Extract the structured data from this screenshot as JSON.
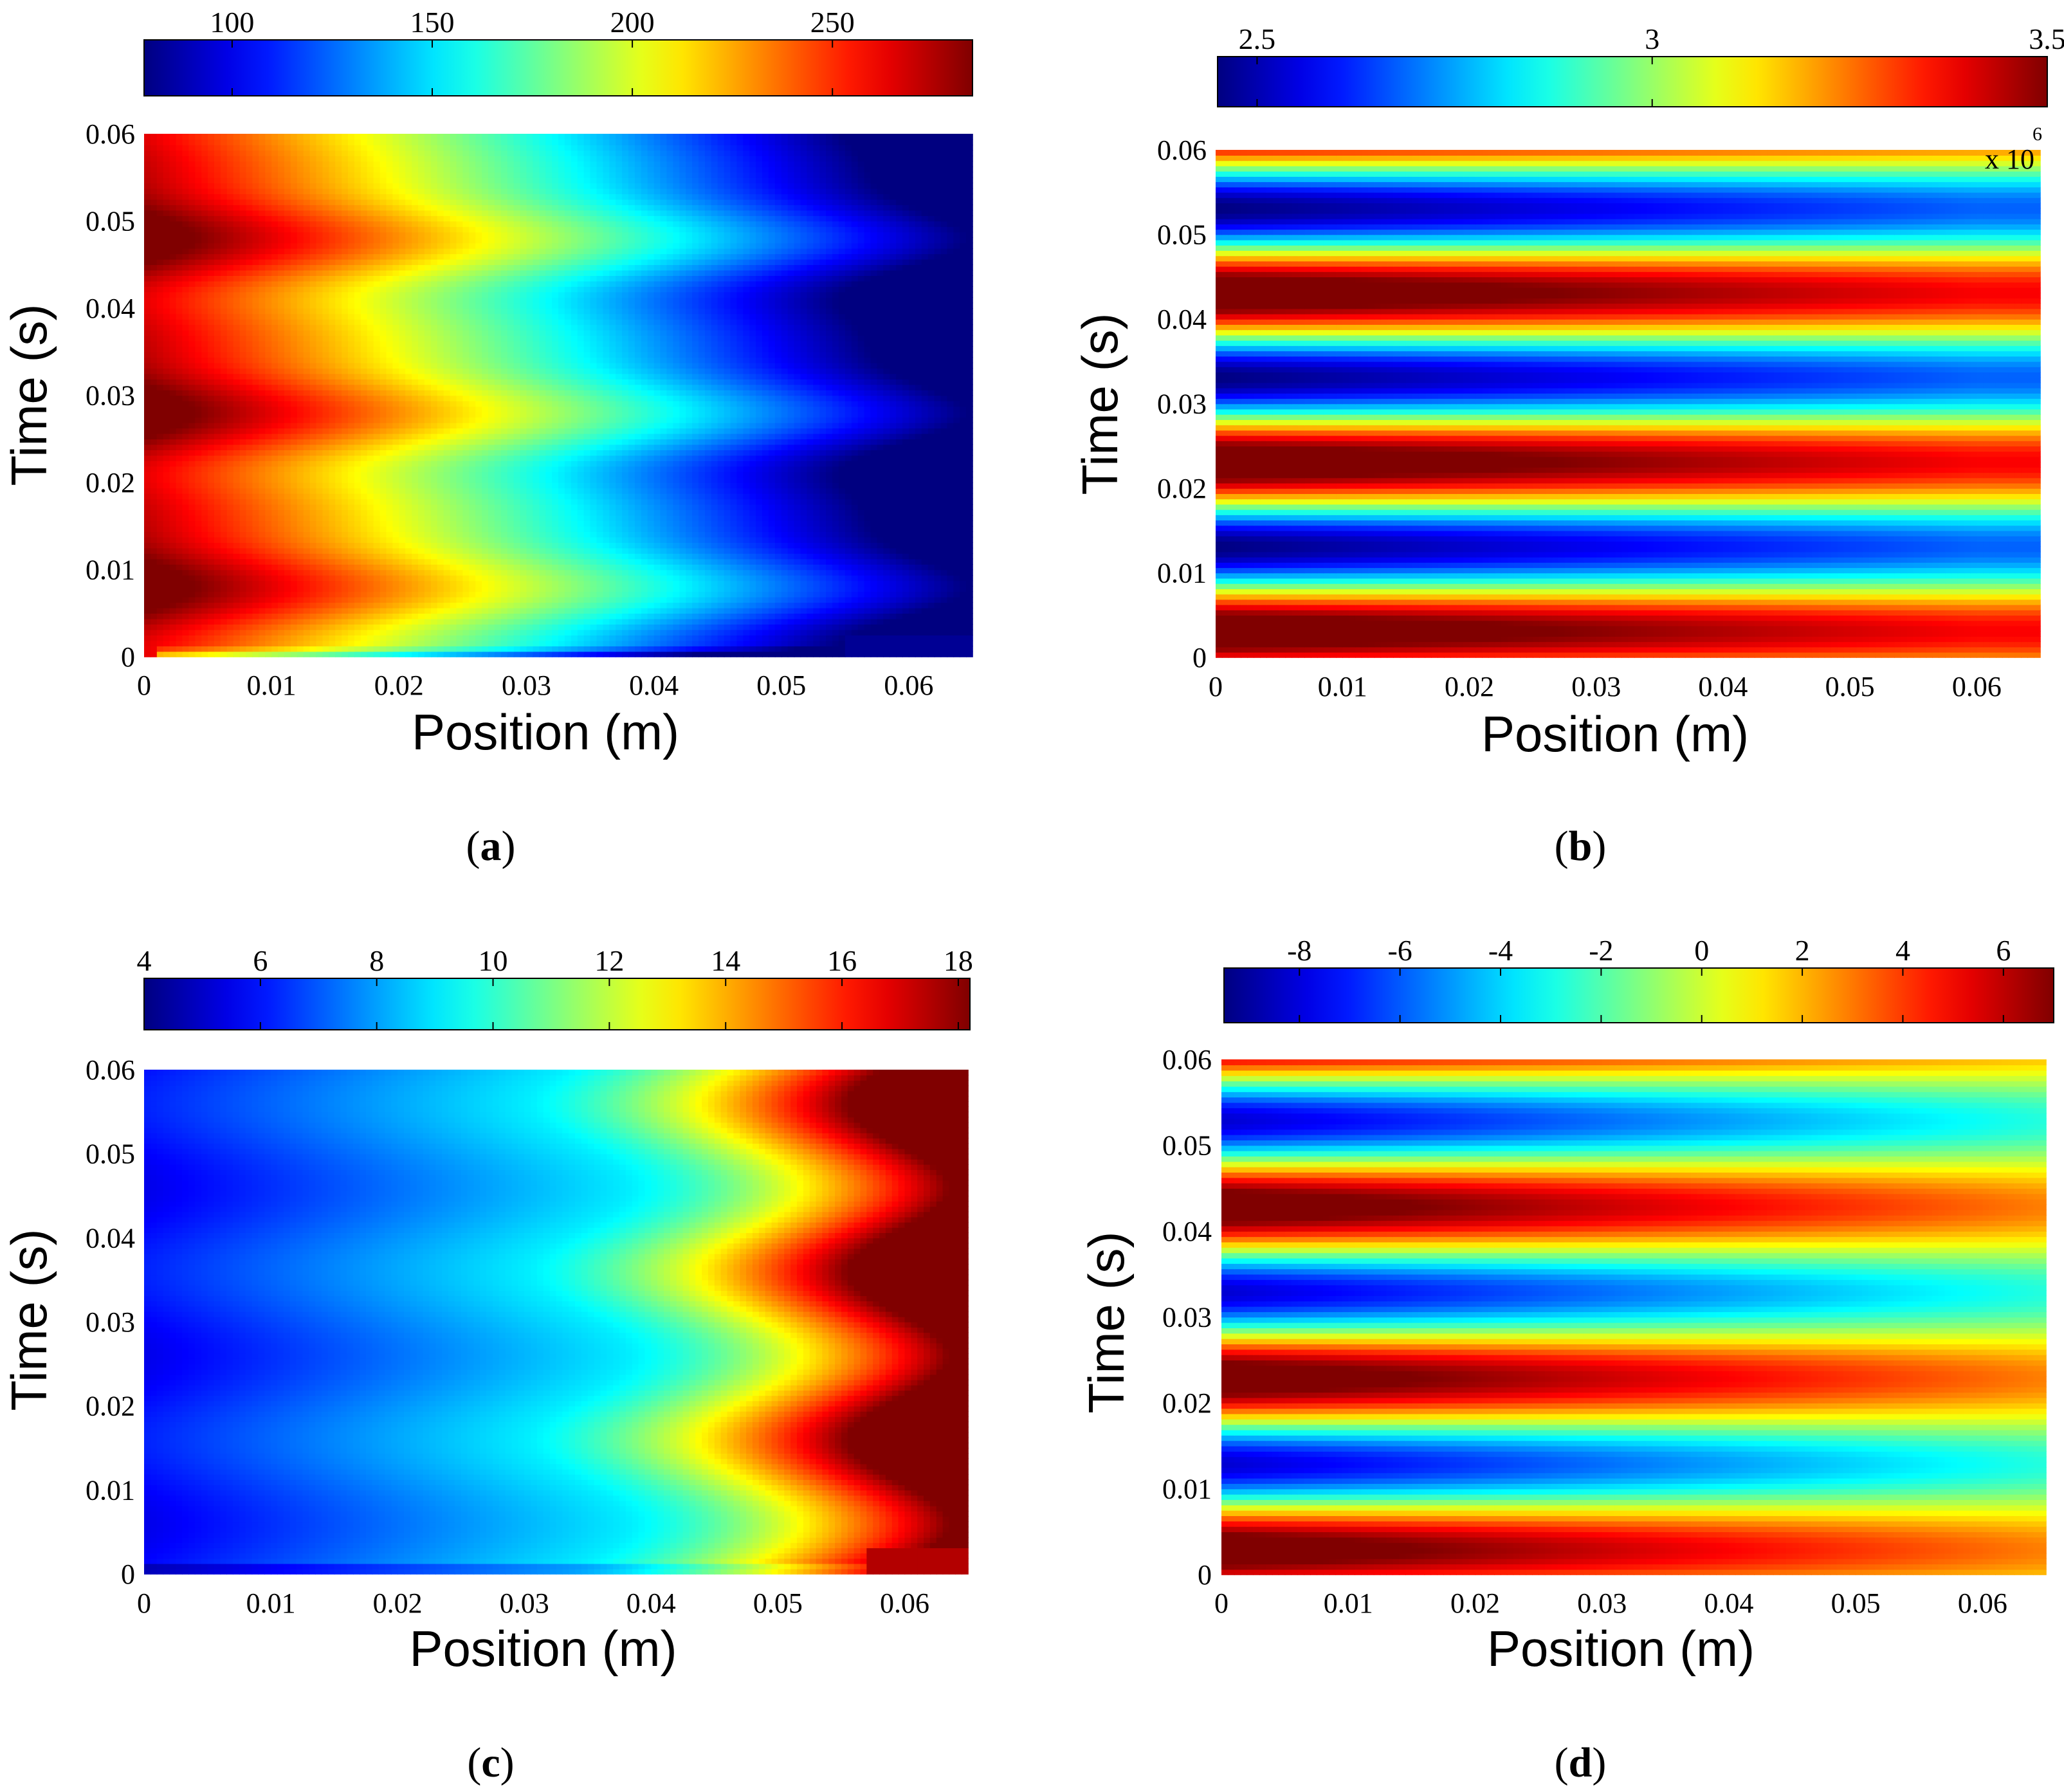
{
  "chart_data": [
    {
      "id": "a",
      "type": "heatmap",
      "panel_label": "a",
      "xlabel": "Position (m)",
      "ylabel": "Time (s)",
      "xlim": [
        0,
        0.065
      ],
      "ylim": [
        0,
        0.06
      ],
      "xticks": [
        "0",
        "0.01",
        "0.02",
        "0.03",
        "0.04",
        "0.05",
        "0.06"
      ],
      "yticks": [
        "0",
        "0.01",
        "0.02",
        "0.03",
        "0.04",
        "0.05",
        "0.06"
      ],
      "colorbar": {
        "range": [
          78,
          285
        ],
        "ticks": [
          100,
          150,
          200,
          250
        ],
        "tick_labels": [
          "100",
          "150",
          "200",
          "250"
        ],
        "colormap": "jet"
      },
      "field": "left-to-right decay, wavy contours, period 0.02 s"
    },
    {
      "id": "b",
      "type": "heatmap",
      "panel_label": "b",
      "xlabel": "Position (m)",
      "ylabel": "Time (s)",
      "xlim": [
        0,
        0.065
      ],
      "ylim": [
        0,
        0.06
      ],
      "xticks": [
        "0",
        "0.01",
        "0.02",
        "0.03",
        "0.04",
        "0.05",
        "0.06"
      ],
      "yticks": [
        "0",
        "0.01",
        "0.02",
        "0.03",
        "0.04",
        "0.05",
        "0.06"
      ],
      "colorbar": {
        "range": [
          2.45,
          3.5
        ],
        "ticks": [
          2.5,
          3,
          3.5
        ],
        "tick_labels": [
          "2.5",
          "3",
          "3.5"
        ],
        "colormap": "jet"
      },
      "multiplier": {
        "base": "x 10",
        "exponent": "6"
      },
      "field": "horizontal bands oscillating in time, period 0.02 s"
    },
    {
      "id": "c",
      "type": "heatmap",
      "panel_label": "c",
      "xlabel": "Position (m)",
      "ylabel": "Time (s)",
      "xlim": [
        0,
        0.065
      ],
      "ylim": [
        0,
        0.06
      ],
      "xticks": [
        "0",
        "0.01",
        "0.02",
        "0.03",
        "0.04",
        "0.05",
        "0.06"
      ],
      "yticks": [
        "0",
        "0.01",
        "0.02",
        "0.03",
        "0.04",
        "0.05",
        "0.06"
      ],
      "colorbar": {
        "range": [
          4,
          18.2
        ],
        "ticks": [
          4,
          6,
          8,
          10,
          12,
          14,
          16,
          18
        ],
        "tick_labels": [
          "4",
          "6",
          "8",
          "10",
          "12",
          "14",
          "16",
          "18"
        ],
        "colormap": "jet"
      },
      "field": "left-to-right growth, wavy contours, period 0.02 s"
    },
    {
      "id": "d",
      "type": "heatmap",
      "panel_label": "d",
      "xlabel": "Position (m)",
      "ylabel": "Time (s)",
      "xlim": [
        0,
        0.065
      ],
      "ylim": [
        0,
        0.06
      ],
      "xticks": [
        "0",
        "0.01",
        "0.02",
        "0.03",
        "0.04",
        "0.05",
        "0.06"
      ],
      "yticks": [
        "0",
        "0.01",
        "0.02",
        "0.03",
        "0.04",
        "0.05",
        "0.06"
      ],
      "colorbar": {
        "range": [
          -9.5,
          7
        ],
        "ticks": [
          -8,
          -6,
          -4,
          -2,
          0,
          2,
          4,
          6
        ],
        "tick_labels": [
          "-8",
          "-6",
          "-4",
          "-2",
          "0",
          "2",
          "4",
          "6"
        ],
        "colormap": "jet"
      },
      "field": "horizontal bands oscillating in time, period 0.02 s, decaying to the right"
    }
  ]
}
